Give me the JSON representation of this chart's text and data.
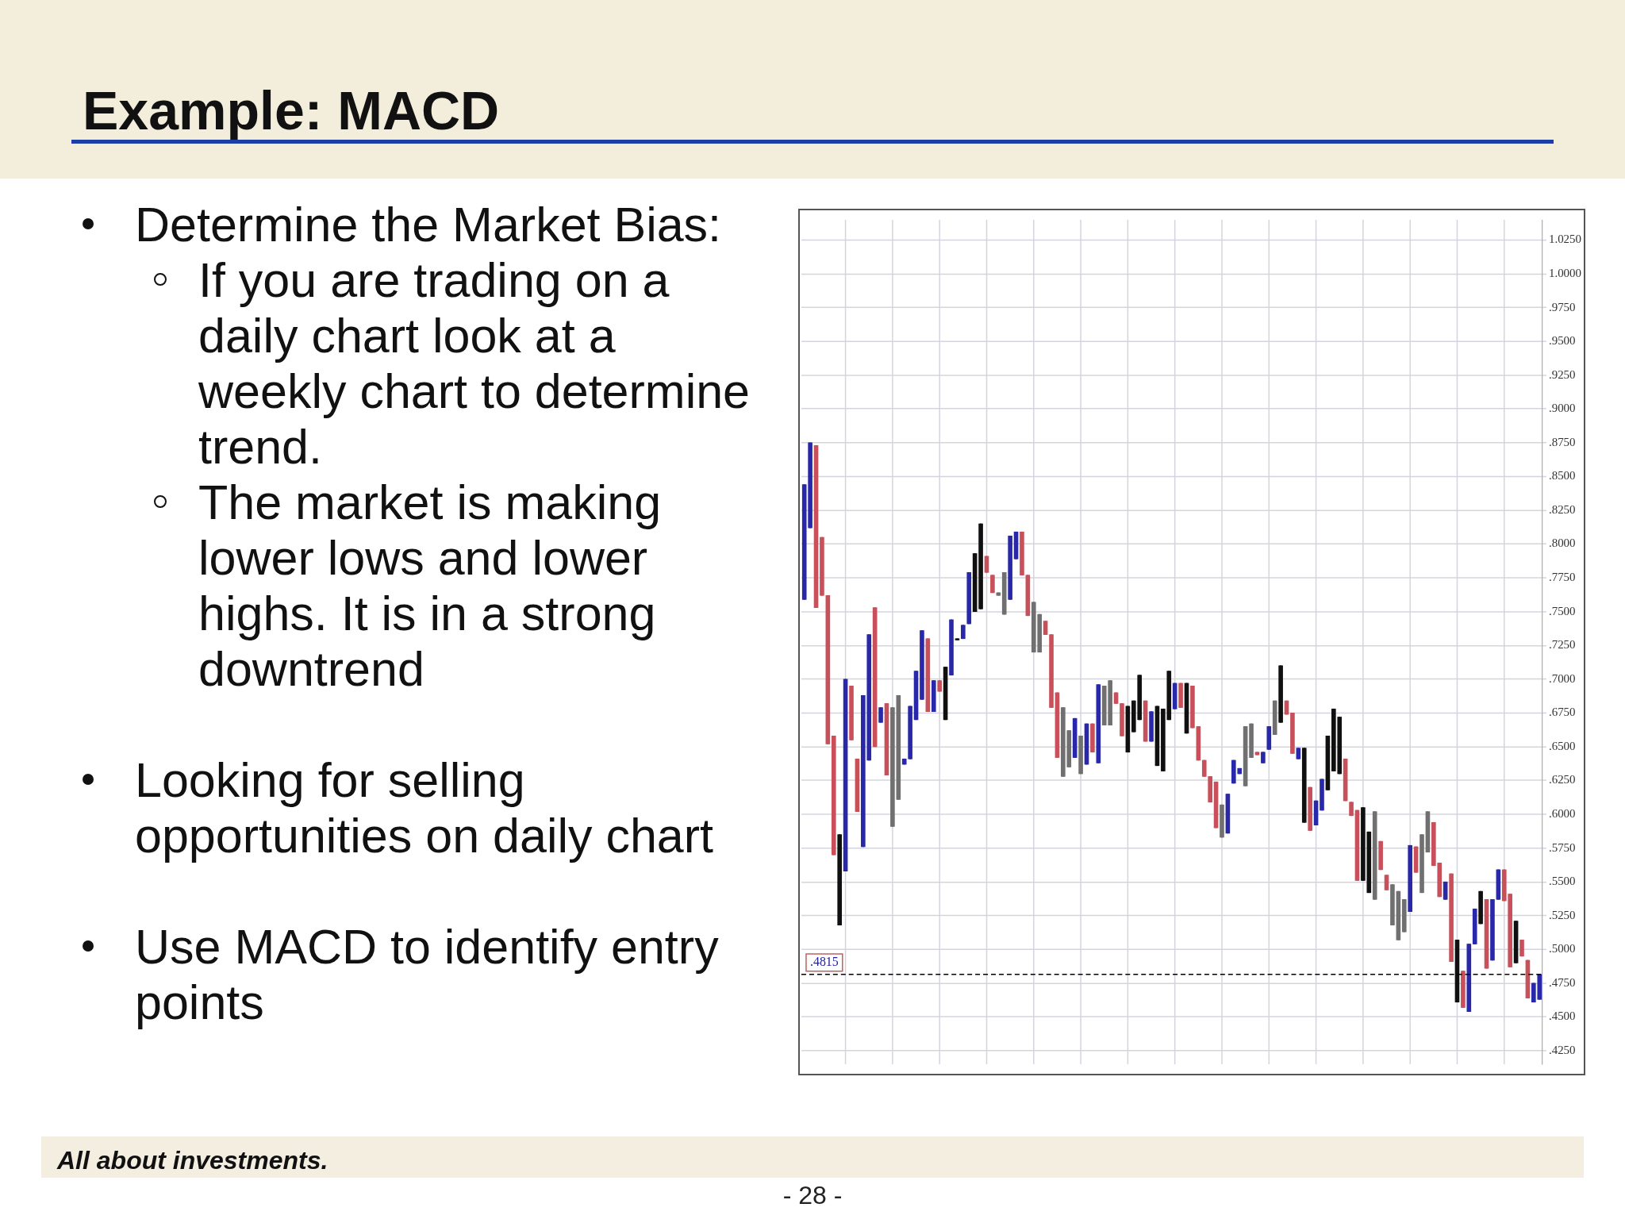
{
  "chart_data": {
    "type": "candlestick",
    "title": "Example: MACD",
    "annotations": [
      "Determine the Market Bias:",
      "If you are trading on a daily chart look at a weekly chart to determine trend.",
      "The market is making lower lows and lower highs. It is in a strong downtrend",
      "Looking for selling opportunities on daily chart",
      "Use MACD to identify entry points",
      "All about investments.",
      "- 28 -"
    ],
    "ylim": [
      0.415,
      1.04
    ],
    "yticks": [
      {
        "value": 1.025,
        "label": "1.0250"
      },
      {
        "value": 1.0,
        "label": "1.0000"
      },
      {
        "value": 0.975,
        "label": ".9750"
      },
      {
        "value": 0.95,
        "label": ".9500"
      },
      {
        "value": 0.925,
        "label": ".9250"
      },
      {
        "value": 0.9,
        "label": ".9000"
      },
      {
        "value": 0.875,
        "label": ".8750"
      },
      {
        "value": 0.85,
        "label": ".8500"
      },
      {
        "value": 0.825,
        "label": ".8250"
      },
      {
        "value": 0.8,
        "label": ".8000"
      },
      {
        "value": 0.775,
        "label": ".7750"
      },
      {
        "value": 0.75,
        "label": ".7500"
      },
      {
        "value": 0.725,
        "label": ".7250"
      },
      {
        "value": 0.7,
        "label": ".7000"
      },
      {
        "value": 0.675,
        "label": ".6750"
      },
      {
        "value": 0.65,
        "label": ".6500"
      },
      {
        "value": 0.625,
        "label": ".6250"
      },
      {
        "value": 0.6,
        "label": ".6000"
      },
      {
        "value": 0.575,
        "label": ".5750"
      },
      {
        "value": 0.55,
        "label": ".5500"
      },
      {
        "value": 0.525,
        "label": ".5250"
      },
      {
        "value": 0.5,
        "label": ".5000"
      },
      {
        "value": 0.475,
        "label": ".4750"
      },
      {
        "value": 0.45,
        "label": ".4500"
      },
      {
        "value": 0.425,
        "label": ".4250"
      }
    ],
    "categories": [
      null,
      null,
      null,
      null,
      null,
      null,
      null,
      null,
      null,
      null,
      null,
      null,
      null,
      null,
      null,
      null,
      null,
      null,
      null,
      null,
      null,
      null,
      null,
      null,
      null,
      null,
      null,
      null,
      null,
      null,
      null,
      null,
      null,
      null,
      null,
      null,
      null,
      null,
      null,
      null,
      null,
      null,
      null,
      null,
      null,
      null,
      null,
      null,
      null,
      null,
      null,
      null,
      null,
      null,
      null,
      null,
      null,
      null,
      null,
      null,
      null,
      null,
      null,
      null,
      null,
      null,
      null,
      null,
      null,
      null,
      null,
      null,
      null,
      null,
      null,
      null,
      null,
      null,
      null,
      null,
      null,
      null,
      null,
      null,
      null,
      null,
      null,
      null,
      null,
      null,
      null,
      null,
      null,
      null,
      null,
      null,
      null,
      null,
      null,
      null,
      null,
      null,
      null,
      null,
      null,
      null,
      null,
      null,
      null,
      null,
      null,
      null,
      null,
      null,
      null,
      null,
      null,
      null,
      null,
      null,
      null,
      null,
      null,
      null,
      null,
      null
    ],
    "grid": true,
    "ref_lines": [
      {
        "axis": "y",
        "value": 0.4815,
        "label": ".4815",
        "color": "#000000",
        "line_style": "dashed"
      }
    ],
    "ohlc": [
      [
        0.759,
        0.844,
        0.759,
        0.844
      ],
      [
        0.812,
        0.875,
        0.812,
        0.875
      ],
      [
        0.873,
        0.873,
        0.753,
        0.753
      ],
      [
        0.805,
        0.805,
        0.762,
        0.762
      ],
      [
        0.762,
        0.762,
        0.652,
        0.652
      ],
      [
        0.658,
        0.658,
        0.57,
        0.57
      ],
      [
        0.518,
        0.585,
        0.518,
        0.585
      ],
      [
        0.558,
        0.7,
        0.558,
        0.7
      ],
      [
        0.695,
        0.695,
        0.655,
        0.655
      ],
      [
        0.641,
        0.641,
        0.602,
        0.602
      ],
      [
        0.576,
        0.688,
        0.576,
        0.688
      ],
      [
        0.64,
        0.733,
        0.64,
        0.733
      ],
      [
        0.753,
        0.753,
        0.65,
        0.65
      ],
      [
        0.668,
        0.679,
        0.668,
        0.679
      ],
      [
        0.682,
        0.682,
        0.629,
        0.629
      ],
      [
        0.679,
        0.679,
        0.591,
        0.591
      ],
      [
        0.688,
        0.688,
        0.611,
        0.611
      ],
      [
        0.637,
        0.641,
        0.637,
        0.641
      ],
      [
        0.641,
        0.68,
        0.641,
        0.68
      ],
      [
        0.67,
        0.706,
        0.67,
        0.706
      ],
      [
        0.685,
        0.736,
        0.685,
        0.736
      ],
      [
        0.73,
        0.73,
        0.676,
        0.676
      ],
      [
        0.676,
        0.699,
        0.676,
        0.699
      ],
      [
        0.699,
        0.699,
        0.691,
        0.691
      ],
      [
        0.67,
        0.709,
        0.67,
        0.709
      ],
      [
        0.703,
        0.744,
        0.703,
        0.744
      ],
      [
        0.729,
        0.73,
        0.729,
        0.73
      ],
      [
        0.73,
        0.74,
        0.73,
        0.74
      ],
      [
        0.741,
        0.779,
        0.741,
        0.779
      ],
      [
        0.75,
        0.793,
        0.75,
        0.793
      ],
      [
        0.752,
        0.815,
        0.752,
        0.815
      ],
      [
        0.791,
        0.791,
        0.779,
        0.779
      ],
      [
        0.777,
        0.777,
        0.764,
        0.764
      ],
      [
        0.764,
        0.764,
        0.762,
        0.762
      ],
      [
        0.779,
        0.779,
        0.748,
        0.748
      ],
      [
        0.759,
        0.806,
        0.759,
        0.806
      ],
      [
        0.789,
        0.809,
        0.789,
        0.809
      ],
      [
        0.809,
        0.809,
        0.777,
        0.777
      ],
      [
        0.777,
        0.777,
        0.747,
        0.747
      ],
      [
        0.757,
        0.757,
        0.72,
        0.72
      ],
      [
        0.748,
        0.748,
        0.72,
        0.72
      ],
      [
        0.743,
        0.743,
        0.733,
        0.733
      ],
      [
        0.733,
        0.733,
        0.679,
        0.679
      ],
      [
        0.69,
        0.69,
        0.642,
        0.642
      ],
      [
        0.679,
        0.679,
        0.628,
        0.628
      ],
      [
        0.662,
        0.662,
        0.635,
        0.635
      ],
      [
        0.642,
        0.671,
        0.642,
        0.671
      ],
      [
        0.658,
        0.658,
        0.63,
        0.63
      ],
      [
        0.637,
        0.667,
        0.637,
        0.667
      ],
      [
        0.667,
        0.667,
        0.646,
        0.646
      ],
      [
        0.638,
        0.696,
        0.638,
        0.696
      ],
      [
        0.695,
        0.695,
        0.666,
        0.666
      ],
      [
        0.699,
        0.699,
        0.666,
        0.666
      ],
      [
        0.69,
        0.69,
        0.682,
        0.682
      ],
      [
        0.682,
        0.682,
        0.658,
        0.658
      ],
      [
        0.646,
        0.68,
        0.646,
        0.68
      ],
      [
        0.661,
        0.684,
        0.661,
        0.684
      ],
      [
        0.67,
        0.703,
        0.67,
        0.703
      ],
      [
        0.684,
        0.684,
        0.654,
        0.654
      ],
      [
        0.654,
        0.676,
        0.654,
        0.676
      ],
      [
        0.636,
        0.68,
        0.636,
        0.68
      ],
      [
        0.632,
        0.678,
        0.632,
        0.678
      ],
      [
        0.67,
        0.706,
        0.67,
        0.706
      ],
      [
        0.678,
        0.697,
        0.678,
        0.697
      ],
      [
        0.697,
        0.697,
        0.679,
        0.679
      ],
      [
        0.66,
        0.697,
        0.66,
        0.697
      ],
      [
        0.695,
        0.695,
        0.664,
        0.664
      ],
      [
        0.665,
        0.665,
        0.64,
        0.64
      ],
      [
        0.64,
        0.64,
        0.628,
        0.628
      ],
      [
        0.628,
        0.628,
        0.609,
        0.609
      ],
      [
        0.624,
        0.624,
        0.59,
        0.59
      ],
      [
        0.607,
        0.607,
        0.583,
        0.583
      ],
      [
        0.586,
        0.615,
        0.586,
        0.615
      ],
      [
        0.623,
        0.64,
        0.623,
        0.64
      ],
      [
        0.63,
        0.634,
        0.63,
        0.634
      ],
      [
        0.665,
        0.665,
        0.621,
        0.621
      ],
      [
        0.667,
        0.667,
        0.642,
        0.642
      ],
      [
        0.646,
        0.646,
        0.644,
        0.644
      ],
      [
        0.638,
        0.646,
        0.638,
        0.646
      ],
      [
        0.648,
        0.665,
        0.648,
        0.665
      ],
      [
        0.684,
        0.684,
        0.659,
        0.659
      ],
      [
        0.668,
        0.71,
        0.668,
        0.71
      ],
      [
        0.684,
        0.684,
        0.674,
        0.674
      ],
      [
        0.675,
        0.675,
        0.645,
        0.645
      ],
      [
        0.641,
        0.649,
        0.641,
        0.649
      ],
      [
        0.594,
        0.649,
        0.594,
        0.649
      ],
      [
        0.62,
        0.62,
        0.588,
        0.588
      ],
      [
        0.592,
        0.61,
        0.592,
        0.61
      ],
      [
        0.603,
        0.626,
        0.603,
        0.626
      ],
      [
        0.618,
        0.658,
        0.618,
        0.658
      ],
      [
        0.632,
        0.678,
        0.632,
        0.678
      ],
      [
        0.63,
        0.672,
        0.63,
        0.672
      ],
      [
        0.641,
        0.641,
        0.61,
        0.61
      ],
      [
        0.609,
        0.609,
        0.599,
        0.599
      ],
      [
        0.603,
        0.603,
        0.551,
        0.551
      ],
      [
        0.551,
        0.605,
        0.551,
        0.605
      ],
      [
        0.542,
        0.587,
        0.542,
        0.587
      ],
      [
        0.602,
        0.602,
        0.537,
        0.537
      ],
      [
        0.58,
        0.58,
        0.559,
        0.559
      ],
      [
        0.555,
        0.555,
        0.544,
        0.544
      ],
      [
        0.548,
        0.548,
        0.518,
        0.518
      ],
      [
        0.543,
        0.543,
        0.507,
        0.507
      ],
      [
        0.537,
        0.537,
        0.513,
        0.513
      ],
      [
        0.528,
        0.577,
        0.528,
        0.577
      ],
      [
        0.576,
        0.576,
        0.557,
        0.557
      ],
      [
        0.585,
        0.585,
        0.542,
        0.542
      ],
      [
        0.602,
        0.602,
        0.572,
        0.572
      ],
      [
        0.594,
        0.594,
        0.562,
        0.562
      ],
      [
        0.564,
        0.564,
        0.539,
        0.539
      ],
      [
        0.537,
        0.55,
        0.537,
        0.55
      ],
      [
        0.556,
        0.556,
        0.491,
        0.491
      ],
      [
        0.461,
        0.507,
        0.461,
        0.507
      ],
      [
        0.484,
        0.484,
        0.457,
        0.457
      ],
      [
        0.454,
        0.504,
        0.454,
        0.504
      ],
      [
        0.504,
        0.53,
        0.504,
        0.53
      ],
      [
        0.519,
        0.543,
        0.519,
        0.543
      ],
      [
        0.537,
        0.537,
        0.486,
        0.486
      ],
      [
        0.492,
        0.537,
        0.492,
        0.537
      ],
      [
        0.537,
        0.559,
        0.537,
        0.559
      ],
      [
        0.559,
        0.559,
        0.536,
        0.536
      ],
      [
        0.541,
        0.541,
        0.487,
        0.487
      ],
      [
        0.49,
        0.521,
        0.49,
        0.521
      ],
      [
        0.507,
        0.507,
        0.495,
        0.495
      ],
      [
        0.492,
        0.492,
        0.464,
        0.464
      ],
      [
        0.461,
        0.475,
        0.461,
        0.475
      ],
      [
        0.463,
        0.4815,
        0.463,
        0.4815
      ]
    ],
    "colors": [
      "#2828a8",
      "#2828a8",
      "#c8505a",
      "#c8505a",
      "#c8505a",
      "#c8505a",
      "#101010",
      "#2828a8",
      "#c8505a",
      "#c8505a",
      "#2828a8",
      "#2828a8",
      "#c8505a",
      "#2828a8",
      "#c8505a",
      "#707070",
      "#707070",
      "#2828a8",
      "#2828a8",
      "#2828a8",
      "#2828a8",
      "#c8505a",
      "#2828a8",
      "#c8505a",
      "#101010",
      "#2828a8",
      "#101010",
      "#2828a8",
      "#2828a8",
      "#101010",
      "#101010",
      "#c8505a",
      "#c8505a",
      "#707070",
      "#707070",
      "#2828a8",
      "#2828a8",
      "#c8505a",
      "#c8505a",
      "#707070",
      "#707070",
      "#c8505a",
      "#c8505a",
      "#c8505a",
      "#707070",
      "#707070",
      "#2828a8",
      "#707070",
      "#2828a8",
      "#c8505a",
      "#2828a8",
      "#707070",
      "#707070",
      "#c8505a",
      "#c8505a",
      "#101010",
      "#101010",
      "#101010",
      "#c8505a",
      "#2828a8",
      "#101010",
      "#101010",
      "#101010",
      "#2828a8",
      "#c8505a",
      "#101010",
      "#c8505a",
      "#c8505a",
      "#c8505a",
      "#c8505a",
      "#c8505a",
      "#707070",
      "#2828a8",
      "#2828a8",
      "#2828a8",
      "#707070",
      "#707070",
      "#c8505a",
      "#2828a8",
      "#2828a8",
      "#707070",
      "#101010",
      "#c8505a",
      "#c8505a",
      "#2828a8",
      "#101010",
      "#c8505a",
      "#2828a8",
      "#2828a8",
      "#101010",
      "#101010",
      "#101010",
      "#c8505a",
      "#c8505a",
      "#c8505a",
      "#101010",
      "#101010",
      "#707070",
      "#c8505a",
      "#c8505a",
      "#707070",
      "#707070",
      "#707070",
      "#2828a8",
      "#c8505a",
      "#707070",
      "#707070",
      "#c8505a",
      "#c8505a",
      "#2828a8",
      "#c8505a",
      "#101010",
      "#c8505a",
      "#2828a8",
      "#2828a8",
      "#101010",
      "#c8505a",
      "#2828a8",
      "#2828a8",
      "#c8505a",
      "#c8505a",
      "#101010",
      "#c8505a",
      "#c8505a",
      "#2828a8",
      "#2828a8"
    ]
  }
}
